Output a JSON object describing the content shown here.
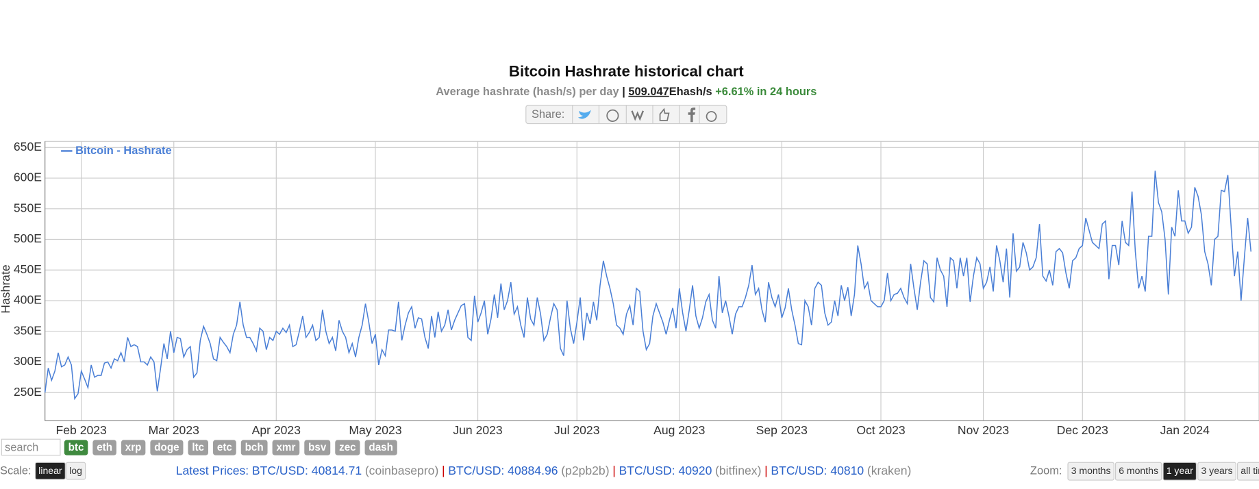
{
  "header": {
    "title": "Bitcoin Hashrate historical chart",
    "subtitle": "Average hashrate (hash/s) per day",
    "separator": "|",
    "current": "509.047",
    "unit": "Ehash/s",
    "change": "+6.61% in 24 hours",
    "share": "Share:"
  },
  "chart_data": {
    "type": "line",
    "y_label": "Hashrate",
    "grid": true,
    "legend": "top-left",
    "xlim": [
      0,
      365
    ],
    "ylim": [
      204,
      660
    ],
    "xticks": [
      {
        "value": 11,
        "label": "Feb 2023"
      },
      {
        "value": 39,
        "label": "Mar 2023"
      },
      {
        "value": 70,
        "label": "Apr 2023"
      },
      {
        "value": 100,
        "label": "May 2023"
      },
      {
        "value": 131,
        "label": "Jun 2023"
      },
      {
        "value": 161,
        "label": "Jul 2023"
      },
      {
        "value": 192,
        "label": "Aug 2023"
      },
      {
        "value": 223,
        "label": "Sep 2023"
      },
      {
        "value": 253,
        "label": "Oct 2023"
      },
      {
        "value": 284,
        "label": "Nov 2023"
      },
      {
        "value": 314,
        "label": "Dec 2023"
      },
      {
        "value": 345,
        "label": "Jan 2024"
      }
    ],
    "yticks": [
      {
        "value": 250,
        "label": "250E"
      },
      {
        "value": 300,
        "label": "300E"
      },
      {
        "value": 350,
        "label": "350E"
      },
      {
        "value": 400,
        "label": "400E"
      },
      {
        "value": 450,
        "label": "450E"
      },
      {
        "value": 500,
        "label": "500E"
      },
      {
        "value": 550,
        "label": "550E"
      },
      {
        "value": 600,
        "label": "600E"
      },
      {
        "value": 650,
        "label": "650E"
      }
    ],
    "x": [
      0,
      1,
      2,
      3,
      4,
      5,
      6,
      7,
      8,
      9,
      10,
      11,
      12,
      13,
      14,
      15,
      16,
      17,
      18,
      19,
      20,
      21,
      22,
      23,
      24,
      25,
      26,
      27,
      28,
      29,
      30,
      31,
      32,
      33,
      34,
      35,
      36,
      37,
      38,
      39,
      40,
      41,
      42,
      43,
      44,
      45,
      46,
      47,
      48,
      49,
      50,
      51,
      52,
      53,
      54,
      55,
      56,
      57,
      58,
      59,
      60,
      61,
      62,
      63,
      64,
      65,
      66,
      67,
      68,
      69,
      70,
      71,
      72,
      73,
      74,
      75,
      76,
      77,
      78,
      79,
      80,
      81,
      82,
      83,
      84,
      85,
      86,
      87,
      88,
      89,
      90,
      91,
      92,
      93,
      94,
      95,
      96,
      97,
      98,
      99,
      100,
      101,
      102,
      103,
      104,
      105,
      106,
      107,
      108,
      109,
      110,
      111,
      112,
      113,
      114,
      115,
      116,
      117,
      118,
      119,
      120,
      121,
      122,
      123,
      124,
      125,
      126,
      127,
      128,
      129,
      130,
      131,
      132,
      133,
      134,
      135,
      136,
      137,
      138,
      139,
      140,
      141,
      142,
      143,
      144,
      145,
      146,
      147,
      148,
      149,
      150,
      151,
      152,
      153,
      154,
      155,
      156,
      157,
      158,
      159,
      160,
      161,
      162,
      163,
      164,
      165,
      166,
      167,
      168,
      169,
      170,
      171,
      172,
      173,
      174,
      175,
      176,
      177,
      178,
      179,
      180,
      181,
      182,
      183,
      184,
      185,
      186,
      187,
      188,
      189,
      190,
      191,
      192,
      193,
      194,
      195,
      196,
      197,
      198,
      199,
      200,
      201,
      202,
      203,
      204,
      205,
      206,
      207,
      208,
      209,
      210,
      211,
      212,
      213,
      214,
      215,
      216,
      217,
      218,
      219,
      220,
      221,
      222,
      223,
      224,
      225,
      226,
      227,
      228,
      229,
      230,
      231,
      232,
      233,
      234,
      235,
      236,
      237,
      238,
      239,
      240,
      241,
      242,
      243,
      244,
      245,
      246,
      247,
      248,
      249,
      250,
      251,
      252,
      253,
      254,
      255,
      256,
      257,
      258,
      259,
      260,
      261,
      262,
      263,
      264,
      265,
      266,
      267,
      268,
      269,
      270,
      271,
      272,
      273,
      274,
      275,
      276,
      277,
      278,
      279,
      280,
      281,
      282,
      283,
      284,
      285,
      286,
      287,
      288,
      289,
      290,
      291,
      292,
      293,
      294,
      295,
      296,
      297,
      298,
      299,
      300,
      301,
      302,
      303,
      304,
      305,
      306,
      307,
      308,
      309,
      310,
      311,
      312,
      313,
      314,
      315,
      316,
      317,
      318,
      319,
      320,
      321,
      322,
      323,
      324,
      325,
      326,
      327,
      328,
      329,
      330,
      331,
      332,
      333,
      334,
      335,
      336,
      337,
      338,
      339,
      340,
      341,
      342,
      343,
      344,
      345,
      346,
      347,
      348,
      349,
      350,
      351,
      352,
      353,
      354,
      355,
      356,
      357,
      358,
      359,
      360,
      361,
      362,
      363,
      364,
      365
    ],
    "series": [
      {
        "name": "Bitcoin - Hashrate",
        "color": "#4a7fd6",
        "values": [
          250,
          290,
          270,
          285,
          315,
          292,
          295,
          308,
          295,
          240,
          248,
          285,
          272,
          258,
          295,
          275,
          278,
          278,
          298,
          300,
          290,
          305,
          302,
          315,
          300,
          340,
          325,
          328,
          325,
          300,
          300,
          295,
          308,
          300,
          252,
          290,
          330,
          305,
          350,
          315,
          340,
          338,
          308,
          320,
          325,
          275,
          282,
          335,
          358,
          345,
          330,
          305,
          302,
          340,
          332,
          325,
          315,
          345,
          360,
          398,
          360,
          340,
          340,
          330,
          318,
          355,
          350,
          320,
          340,
          335,
          350,
          345,
          355,
          348,
          360,
          325,
          328,
          350,
          375,
          340,
          348,
          360,
          335,
          340,
          385,
          350,
          330,
          340,
          318,
          368,
          350,
          340,
          315,
          330,
          308,
          340,
          360,
          395,
          365,
          330,
          345,
          295,
          320,
          310,
          352,
          352,
          350,
          398,
          335,
          360,
          380,
          390,
          355,
          372,
          370,
          340,
          322,
          375,
          340,
          382,
          350,
          360,
          385,
          352,
          368,
          380,
          392,
          395,
          340,
          335,
          408,
          365,
          380,
          400,
          345,
          370,
          410,
          372,
          428,
          385,
          400,
          430,
          378,
          390,
          360,
          340,
          405,
          370,
          360,
          405,
          378,
          335,
          345,
          372,
          395,
          385,
          322,
          310,
          400,
          355,
          330,
          365,
          405,
          335,
          380,
          362,
          398,
          368,
          425,
          465,
          440,
          420,
          395,
          360,
          355,
          345,
          378,
          392,
          360,
          420,
          415,
          350,
          320,
          330,
          375,
          395,
          380,
          365,
          345,
          368,
          388,
          355,
          420,
          380,
          350,
          385,
          425,
          375,
          355,
          372,
          398,
          410,
          368,
          355,
          440,
          380,
          400,
          375,
          345,
          378,
          390,
          390,
          405,
          425,
          458,
          410,
          420,
          385,
          365,
          430,
          405,
          390,
          410,
          372,
          388,
          420,
          385,
          360,
          330,
          328,
          400,
          390,
          360,
          420,
          430,
          425,
          380,
          360,
          365,
          400,
          375,
          425,
          400,
          422,
          375,
          410,
          490,
          460,
          420,
          430,
          400,
          395,
          390,
          390,
          400,
          445,
          400,
          410,
          412,
          420,
          405,
          395,
          460,
          420,
          385,
          430,
          465,
          460,
          405,
          398,
          470,
          450,
          440,
          390,
          470,
          465,
          420,
          470,
          440,
          470,
          398,
          440,
          470,
          460,
          420,
          430,
          455,
          415,
          490,
          465,
          430,
          485,
          405,
          510,
          448,
          455,
          495,
          478,
          450,
          455,
          470,
          525,
          440,
          432,
          450,
          425,
          480,
          485,
          478,
          445,
          420,
          465,
          470,
          485,
          490,
          535,
          515,
          495,
          490,
          485,
          525,
          530,
          435,
          490,
          490,
          458,
          530,
          495,
          490,
          578,
          480,
          420,
          440,
          415,
          505,
          505,
          612,
          560,
          545,
          500,
          410,
          520,
          505,
          580,
          530,
          530,
          510,
          520,
          585,
          570,
          540,
          480,
          460,
          425,
          500,
          505,
          580,
          578,
          605,
          520,
          440,
          480,
          400,
          470,
          535,
          480
        ]
      }
    ]
  },
  "controls": {
    "search": "search",
    "coins": [
      "btc",
      "eth",
      "xrp",
      "doge",
      "ltc",
      "etc",
      "bch",
      "xmr",
      "bsv",
      "zec",
      "dash"
    ],
    "active_coin": 0,
    "scale_label": "Scale:",
    "scales": [
      "linear",
      "log"
    ],
    "active_scale": 0,
    "zoom_label": "Zoom:",
    "zooms": [
      "3 months",
      "6 months",
      "1 year",
      "3 years",
      "all time"
    ],
    "active_zoom": 2
  },
  "prices": {
    "label": "Latest Prices:",
    "separator": "|",
    "items": [
      {
        "price": "BTC/USD: 40814.71",
        "source": "(coinbasepro)"
      },
      {
        "price": "BTC/USD: 40884.96",
        "source": "(p2pb2b)"
      },
      {
        "price": "BTC/USD: 40920",
        "source": "(bitfinex)"
      },
      {
        "price": "BTC/USD: 40810",
        "source": "(kraken)"
      }
    ]
  }
}
